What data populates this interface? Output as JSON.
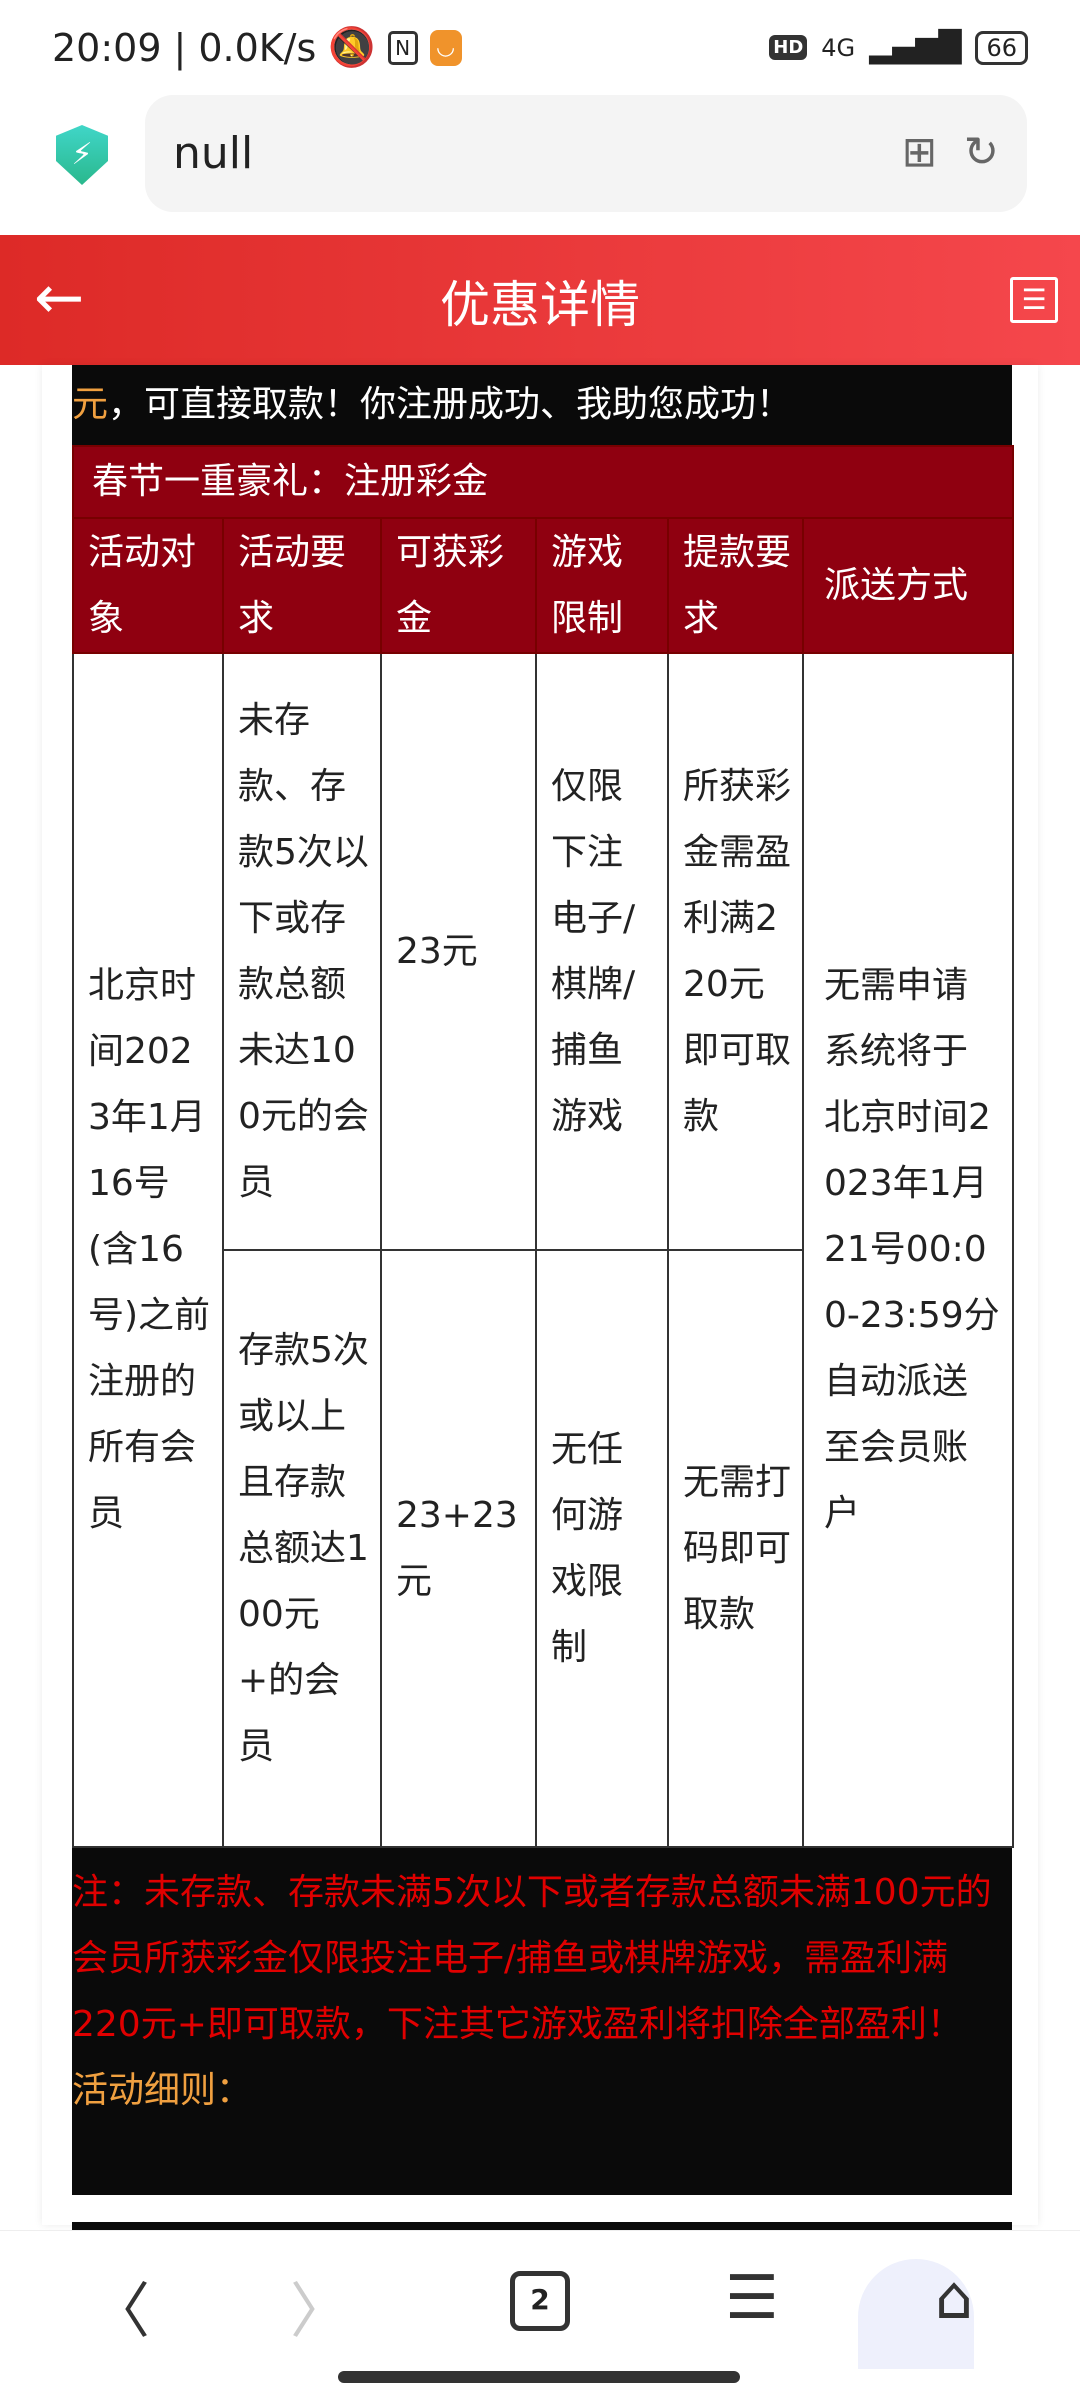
{
  "status": {
    "time": "20:09",
    "speed": "0.0K/s",
    "network": "4G",
    "hd": "HD",
    "battery": "66"
  },
  "browser": {
    "url": "null",
    "tab_count": "2"
  },
  "header": {
    "title": "优惠详情"
  },
  "intro": {
    "highlight": "元",
    "text": "，可直接取款！你注册成功、我助您成功！"
  },
  "promo": {
    "banner": "春节一重豪礼：注册彩金",
    "columns": [
      "活动对象",
      "活动要求",
      "可获彩金",
      "游戏限制",
      "提款要求",
      "派送方式"
    ],
    "target": "北京时间2023年1月16号(含16号)之前注册的所有会员",
    "delivery": "无需申请系统将于北京时间2023年1月21号00:00-23:59分自动派送至会员账户",
    "rows": [
      {
        "requirement": "未存款、存款5次以下或存款总额未达100元的会员",
        "bonus": "23元",
        "game_limit": "仅限下注电子/棋牌/捕鱼游戏",
        "withdrawal": "所获彩金需盈利满220元即可取款"
      },
      {
        "requirement": "存款5次或以上且存款总额达100元+的会员",
        "bonus": "23+23元",
        "game_limit": "无任何游戏限制",
        "withdrawal": "无需打码即可取款"
      }
    ],
    "note": "注：未存款、存款未满5次以下或者存款总额未满100元的会员所获彩金仅限投注电子/捕鱼或棋牌游戏，需盈利满220元+即可取款，下注其它游戏盈利将扣除全部盈利！",
    "rules_label": "活动细则："
  },
  "colors": {
    "header_red": "#e8373a",
    "table_header": "#8f0010",
    "note_red": "#e00000",
    "accent_orange": "#f0a040"
  }
}
